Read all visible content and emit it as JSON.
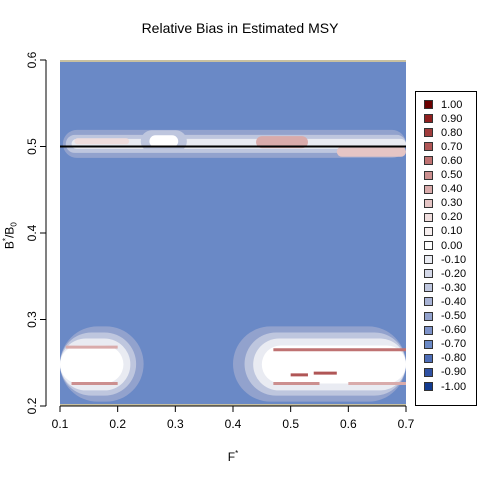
{
  "chart_data": {
    "type": "heatmap",
    "title": "Relative Bias in Estimated MSY",
    "xlabel": "F",
    "xlabel_sup": "*",
    "ylabel": "B",
    "ylabel_sup": "*",
    "ylabel_suffix": "/B",
    "ylabel_sub": "0",
    "xlim": [
      0.1,
      0.7
    ],
    "ylim": [
      0.2,
      0.6
    ],
    "x_ticks": [
      0.1,
      0.2,
      0.3,
      0.4,
      0.5,
      0.6,
      0.7
    ],
    "x_tick_labels": [
      "0.1",
      "0.2",
      "0.3",
      "0.4",
      "0.5",
      "0.6",
      "0.7"
    ],
    "y_ticks": [
      0.2,
      0.3,
      0.4,
      0.5,
      0.6
    ],
    "y_tick_labels": [
      "0.2",
      "0.3",
      "0.4",
      "0.5",
      "0.6"
    ],
    "reference_line_y": 0.5,
    "background_value": -0.7,
    "legend_position": "right",
    "legend": [
      {
        "label": "1.00",
        "color": "#6b0000"
      },
      {
        "label": "0.90",
        "color": "#8f1f1f"
      },
      {
        "label": "0.80",
        "color": "#a03c3c"
      },
      {
        "label": "0.70",
        "color": "#b05656"
      },
      {
        "label": "0.60",
        "color": "#bf7272"
      },
      {
        "label": "0.50",
        "color": "#cc8f8f"
      },
      {
        "label": "0.40",
        "color": "#d9abab"
      },
      {
        "label": "0.30",
        "color": "#e5c5c5"
      },
      {
        "label": "0.20",
        "color": "#efdddd"
      },
      {
        "label": "0.10",
        "color": "#f7efef"
      },
      {
        "label": "0.00",
        "color": "#ffffff"
      },
      {
        "label": "-0.10",
        "color": "#e9ebf2"
      },
      {
        "label": "-0.20",
        "color": "#d4d8e8"
      },
      {
        "label": "-0.30",
        "color": "#bec6de"
      },
      {
        "label": "-0.40",
        "color": "#a8b3d5"
      },
      {
        "label": "-0.50",
        "color": "#92a2cd"
      },
      {
        "label": "-0.60",
        "color": "#7d92c8"
      },
      {
        "label": "-0.70",
        "color": "#6a89c6"
      },
      {
        "label": "-0.80",
        "color": "#4d6db7"
      },
      {
        "label": "-0.90",
        "color": "#2f51a3"
      },
      {
        "label": "-1.00",
        "color": "#123b90"
      }
    ]
  }
}
